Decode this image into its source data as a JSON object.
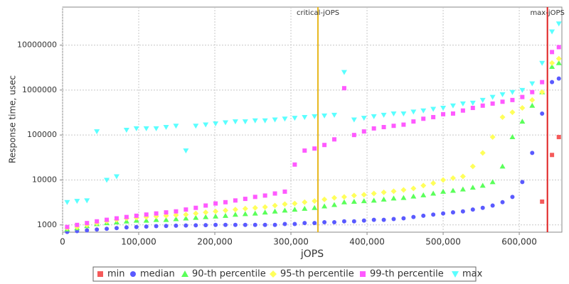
{
  "chart_data": {
    "type": "scatter",
    "x_label": "jOPS",
    "y_label": "Response time, usec",
    "xlim": [
      0,
      656000
    ],
    "ylim": [
      690,
      70000000
    ],
    "yscale": "log",
    "grid": true,
    "legend": "bottom",
    "xticks": [
      0,
      {
        "value": 100000,
        "label": "100,000"
      },
      {
        "value": 200000,
        "label": "200,000"
      },
      {
        "value": 300000,
        "label": "300,000"
      },
      {
        "value": 400000,
        "label": "400,000"
      },
      {
        "value": 500000,
        "label": "500,000"
      },
      {
        "value": 600000,
        "label": "600,000"
      }
    ],
    "yticks": [
      1000,
      10000,
      100000,
      1000000,
      10000000
    ],
    "reference_lines": [
      {
        "label": "critical-jOPS",
        "x": 335500,
        "color": "#e8b820"
      },
      {
        "label": "max-jOPS",
        "x": 637000,
        "color": "#e02020"
      }
    ],
    "x": [
      6000,
      19000,
      32000,
      45000,
      58000,
      71000,
      84000,
      97000,
      110000,
      123000,
      136000,
      149000,
      162000,
      175000,
      188000,
      201000,
      214000,
      227000,
      240000,
      253000,
      266000,
      279000,
      292000,
      305000,
      318000,
      331000,
      344000,
      357000,
      370000,
      383000,
      396000,
      409000,
      422000,
      435000,
      448000,
      461000,
      474000,
      487000,
      500000,
      513000,
      526000,
      539000,
      552000,
      565000,
      578000,
      591000,
      604000,
      617000,
      630000,
      643000,
      652000
    ],
    "series": [
      {
        "name": "min",
        "color": "#f55a5a",
        "marker": "square",
        "values": [
          null,
          null,
          null,
          null,
          null,
          null,
          null,
          null,
          null,
          null,
          null,
          null,
          null,
          null,
          null,
          null,
          null,
          null,
          null,
          null,
          null,
          null,
          null,
          null,
          null,
          null,
          null,
          null,
          null,
          null,
          null,
          null,
          null,
          null,
          null,
          null,
          null,
          null,
          null,
          null,
          null,
          null,
          null,
          null,
          null,
          null,
          null,
          null,
          3300,
          36000,
          90000
        ]
      },
      {
        "name": "median",
        "color": "#5a5aff",
        "marker": "circle",
        "values": [
          700,
          730,
          760,
          790,
          820,
          850,
          880,
          900,
          920,
          940,
          950,
          960,
          970,
          980,
          990,
          1000,
          1000,
          1000,
          1000,
          1000,
          1000,
          1000,
          1050,
          1050,
          1100,
          1100,
          1150,
          1150,
          1200,
          1200,
          1250,
          1300,
          1300,
          1350,
          1400,
          1500,
          1600,
          1700,
          1800,
          1900,
          2000,
          2200,
          2400,
          2700,
          3200,
          4200,
          9000,
          40000,
          300000,
          1500000,
          1800000
        ]
      },
      {
        "name": "90-th percentile",
        "color": "#5aff5a",
        "marker": "triangle-up",
        "values": [
          800,
          850,
          950,
          1050,
          1100,
          1150,
          1200,
          1250,
          1250,
          1300,
          1300,
          1350,
          1400,
          1450,
          1500,
          1550,
          1600,
          1700,
          1750,
          1800,
          1900,
          2000,
          2100,
          2200,
          2300,
          2400,
          2600,
          2800,
          3200,
          3300,
          3400,
          3500,
          3700,
          3900,
          4000,
          4300,
          4600,
          5000,
          5500,
          5800,
          6200,
          6800,
          7500,
          9000,
          20000,
          90000,
          200000,
          450000,
          900000,
          3300000,
          4000000
        ]
      },
      {
        "name": "95-th percentile",
        "color": "#ffff5a",
        "marker": "diamond",
        "values": [
          850,
          900,
          1000,
          1100,
          1200,
          1300,
          1400,
          1450,
          1500,
          1550,
          1600,
          1650,
          1700,
          1800,
          1900,
          2000,
          2100,
          2200,
          2300,
          2400,
          2500,
          2700,
          2900,
          3000,
          3200,
          3400,
          3700,
          4000,
          4200,
          4500,
          4700,
          5000,
          5300,
          5600,
          6000,
          6500,
          7500,
          8500,
          10000,
          11000,
          12000,
          20000,
          40000,
          90000,
          250000,
          320000,
          400000,
          600000,
          900000,
          4000000,
          5000000
        ]
      },
      {
        "name": "99-th percentile",
        "color": "#ff5aff",
        "marker": "square",
        "values": [
          900,
          1000,
          1100,
          1200,
          1300,
          1400,
          1500,
          1600,
          1700,
          1800,
          1900,
          2000,
          2200,
          2400,
          2700,
          3000,
          3200,
          3500,
          3800,
          4200,
          4500,
          5000,
          5500,
          22000,
          45000,
          50000,
          60000,
          80000,
          1100000,
          100000,
          120000,
          140000,
          150000,
          160000,
          170000,
          200000,
          230000,
          250000,
          290000,
          300000,
          350000,
          400000,
          450000,
          500000,
          550000,
          600000,
          700000,
          900000,
          1500000,
          7000000,
          9000000
        ]
      },
      {
        "name": "max",
        "color": "#5affff",
        "marker": "triangle-down",
        "values": [
          3200,
          3400,
          3500,
          120000,
          10000,
          12000,
          130000,
          140000,
          140000,
          140000,
          150000,
          160000,
          45000,
          160000,
          170000,
          180000,
          190000,
          200000,
          200000,
          210000,
          210000,
          220000,
          230000,
          240000,
          250000,
          260000,
          270000,
          280000,
          2500000,
          220000,
          240000,
          260000,
          280000,
          300000,
          300000,
          330000,
          350000,
          380000,
          400000,
          450000,
          500000,
          520000,
          600000,
          700000,
          800000,
          900000,
          1000000,
          1400000,
          4000000,
          20000000,
          30000000
        ]
      }
    ]
  }
}
